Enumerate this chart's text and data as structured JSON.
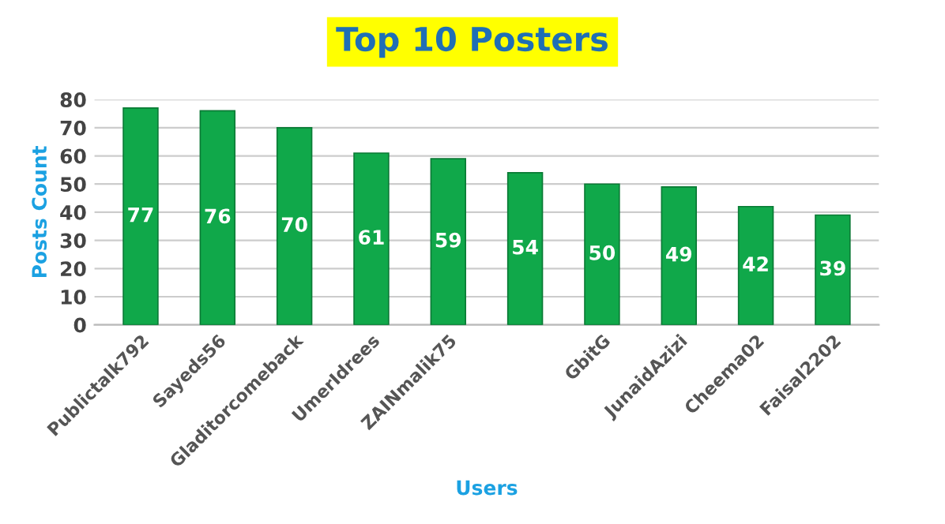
{
  "chart_data": {
    "type": "bar",
    "title": "Top 10 Posters",
    "xlabel": "Users",
    "ylabel": "Posts Count",
    "categories": [
      "Publictalk792",
      "Sayeds56",
      "Gladitorcomeback",
      "UmerIdrees",
      "ZAINmalik75",
      null,
      "GbitG",
      "JunaidAzizi",
      "Cheema02",
      "Faisal2202"
    ],
    "values": [
      77,
      76,
      70,
      61,
      59,
      54,
      50,
      49,
      42,
      39
    ],
    "color": "#10a84a",
    "ylim": [
      0,
      80
    ],
    "yticks": [
      0,
      10,
      20,
      30,
      40,
      50,
      60,
      70,
      80
    ],
    "grid": "y",
    "data_labels": true
  }
}
